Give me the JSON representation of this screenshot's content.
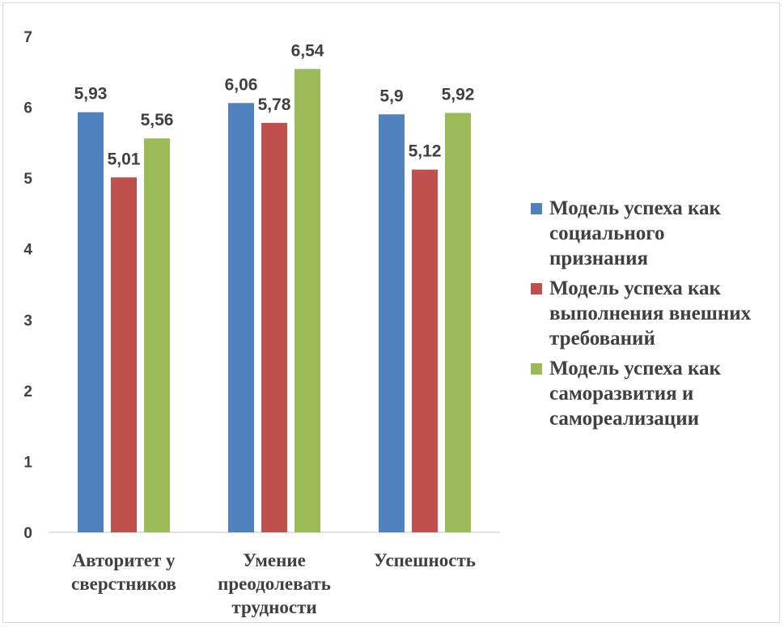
{
  "chart_data": {
    "type": "bar",
    "categories": [
      "Авторитет у\nсверстников",
      "Умение\nпреодолевать\nтрудности",
      "Успешность"
    ],
    "series": [
      {
        "name": "Модель успеха как\nсоциального\nпризнания",
        "color": "#4f81bd",
        "values": [
          5.93,
          6.06,
          5.9
        ],
        "labels": [
          "5,93",
          "6,06",
          "5,9"
        ]
      },
      {
        "name": "Модель успеха как\nвыполнения внешних\nтребований",
        "color": "#c0504d",
        "values": [
          5.01,
          5.78,
          5.12
        ],
        "labels": [
          "5,01",
          "5,78",
          "5,12"
        ]
      },
      {
        "name": "Модель успеха как\nсаморазвития и\nсамореализации",
        "color": "#9bbb59",
        "values": [
          5.56,
          6.54,
          5.92
        ],
        "labels": [
          "5,56",
          "6,54",
          "5,92"
        ]
      }
    ],
    "ylim": [
      0,
      7
    ],
    "yticks": [
      "0",
      "1",
      "2",
      "3",
      "4",
      "5",
      "6",
      "7"
    ],
    "grid": false,
    "legend_position": "right"
  }
}
